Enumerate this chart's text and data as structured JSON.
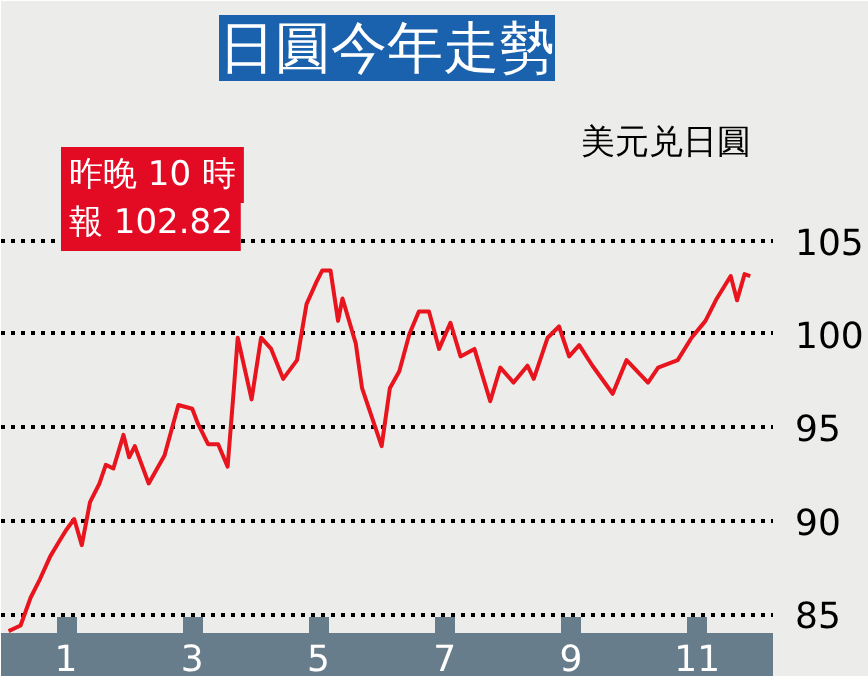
{
  "chart_data": {
    "type": "line",
    "title": "日圓今年走勢",
    "ylabel": "美元兑日圓",
    "annotations": [
      "昨晚 10 時",
      "報 102.82"
    ],
    "series": [
      {
        "color": "#e8141e",
        "x": [
          0.09,
          0.28,
          0.44,
          0.59,
          0.75,
          0.91,
          1.0,
          1.13,
          1.25,
          1.38,
          1.53,
          1.63,
          1.75,
          1.91,
          2.0,
          2.09,
          2.31,
          2.56,
          2.78,
          3.0,
          3.09,
          3.25,
          3.41,
          3.56,
          3.66,
          3.72,
          3.94,
          4.09,
          4.25,
          4.44,
          4.66,
          4.81,
          4.97,
          5.06,
          5.19,
          5.31,
          5.38,
          5.59,
          5.69,
          6.0,
          6.13,
          6.28,
          6.44,
          6.59,
          6.75,
          6.91,
          7.09,
          7.25,
          7.47,
          7.72,
          7.88,
          8.09,
          8.31,
          8.41,
          8.63,
          8.81,
          8.97,
          9.13,
          9.34,
          9.66,
          9.88,
          10.22,
          10.38,
          10.69,
          10.91,
          11.13,
          11.31,
          11.53,
          11.63,
          11.75,
          11.84
        ],
        "values": [
          84.1,
          84.4,
          85.9,
          86.9,
          88.1,
          89.0,
          89.5,
          90.1,
          88.7,
          91.0,
          92.0,
          93.0,
          92.8,
          94.6,
          93.4,
          94.0,
          92.0,
          93.5,
          96.2,
          96.0,
          95.2,
          94.1,
          94.1,
          92.9,
          97.1,
          99.8,
          96.5,
          99.8,
          99.2,
          97.6,
          98.6,
          101.6,
          102.8,
          103.4,
          103.4,
          100.7,
          101.9,
          99.5,
          97.1,
          94.0,
          97.1,
          98.0,
          100.0,
          101.2,
          101.2,
          99.2,
          100.6,
          98.8,
          99.2,
          96.4,
          98.2,
          97.4,
          98.3,
          97.6,
          99.8,
          100.4,
          98.8,
          99.4,
          98.3,
          96.8,
          98.6,
          97.4,
          98.2,
          98.6,
          99.8,
          100.7,
          101.9,
          103.1,
          101.8,
          103.2,
          103.1
        ]
      }
    ],
    "xlim": [
      -0.03,
      12.2
    ],
    "ylim": [
      84,
      113
    ],
    "xticks": [
      1,
      3,
      5,
      7,
      9,
      11
    ],
    "yticks": [
      85,
      90,
      95,
      100,
      105
    ],
    "grid": "y"
  }
}
